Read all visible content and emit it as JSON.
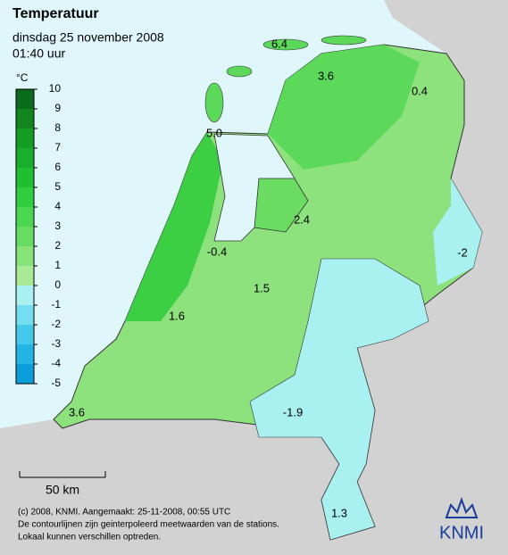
{
  "header": {
    "title": "Temperatuur",
    "date": "dinsdag 25 november 2008",
    "time": "01:40 uur"
  },
  "legend": {
    "unit": "°C",
    "ticks": [
      10,
      9,
      8,
      7,
      6,
      5,
      4,
      3,
      2,
      1,
      0,
      -1,
      -2,
      -3,
      -4,
      -5
    ],
    "colors": [
      "#0b6b1c",
      "#11861f",
      "#149c25",
      "#19ae2b",
      "#20bf31",
      "#30cd3e",
      "#4bd651",
      "#68dc62",
      "#88e27a",
      "#a8ea96",
      "#a9f1f1",
      "#74ddef",
      "#45c9ea",
      "#22b4e3",
      "#0b9fd9"
    ]
  },
  "stations": [
    6.4,
    3.6,
    0.4,
    {
      "value": 5,
      "label": "5.0"
    },
    2.4,
    -0.4,
    1.5,
    1.6,
    -2.0,
    -1.9,
    3.6,
    1.3
  ],
  "scale_bar": "50 km",
  "footer": [
    "(c) 2008, KNMI. Aangemaakt: 25-11-2008, 00:55 UTC",
    "De contourlijnen zijn geinterpoleerd meetwaarden van de stations.",
    "Lokaal kunnen verschillen optreden."
  ],
  "logo": "KNMI"
}
